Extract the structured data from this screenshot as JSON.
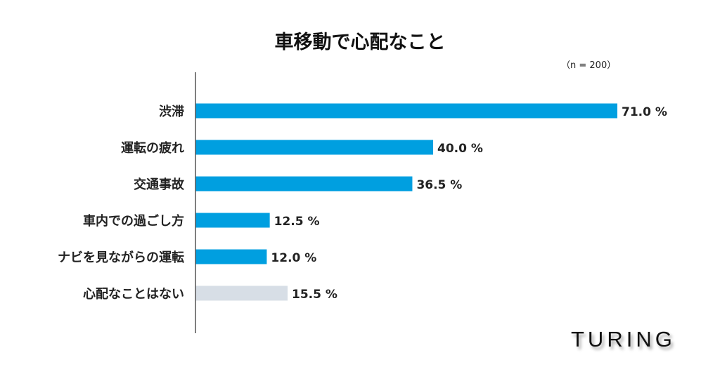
{
  "chart_data": {
    "type": "bar",
    "orientation": "horizontal",
    "title": "車移動で心配なこと",
    "note": "（n = 200）",
    "categories": [
      "渋滞",
      "運転の疲れ",
      "交通事故",
      "車内での過ごし方",
      "ナビを見ながらの運転",
      "心配なことはない"
    ],
    "values": [
      71.0,
      40.0,
      36.5,
      12.5,
      12.0,
      15.5
    ],
    "value_labels": [
      "71.0 %",
      "40.0 %",
      "36.5 %",
      "12.5 %",
      "12.0 %",
      "15.5 %"
    ],
    "colors": [
      "#009fe0",
      "#009fe0",
      "#009fe0",
      "#009fe0",
      "#009fe0",
      "#d7dee6"
    ],
    "xlabel": "",
    "ylabel": "",
    "xlim": [
      0,
      71
    ],
    "grid": false
  },
  "logo": "TURING"
}
